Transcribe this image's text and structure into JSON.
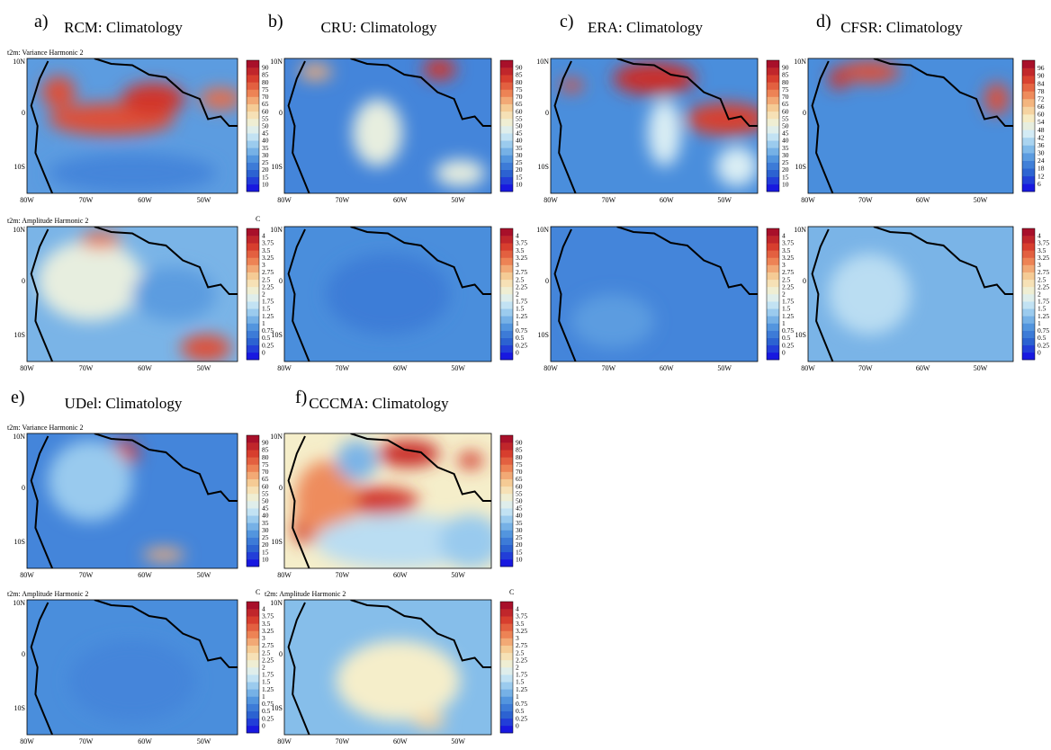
{
  "panels": [
    {
      "label": "a)",
      "title": "RCM: Climatology",
      "maps": [
        {
          "subtitle": "t2m: Variance Harmonic 2",
          "levels": [
            10,
            15,
            20,
            25,
            30,
            35,
            40,
            45,
            50,
            55,
            60,
            65,
            70,
            75,
            80,
            85,
            90
          ]
        },
        {
          "subtitle": "t2m: Amplitude Harmonic 2",
          "unit": "C",
          "levels": [
            0,
            0.25,
            0.5,
            0.75,
            1,
            1.25,
            1.5,
            1.75,
            2,
            2.25,
            2.5,
            2.75,
            3,
            3.25,
            3.5,
            3.75,
            4
          ]
        }
      ]
    },
    {
      "label": "b)",
      "title": "CRU: Climatology",
      "maps": [
        {
          "levels": [
            10,
            15,
            20,
            25,
            30,
            35,
            40,
            45,
            50,
            55,
            60,
            65,
            70,
            75,
            80,
            85,
            90
          ]
        },
        {
          "levels": [
            0,
            0.25,
            0.5,
            0.75,
            1,
            1.25,
            1.5,
            1.75,
            2,
            2.25,
            2.5,
            2.75,
            3,
            3.25,
            3.5,
            3.75,
            4
          ]
        }
      ]
    },
    {
      "label": "c)",
      "title": "ERA: Climatology",
      "maps": [
        {
          "levels": [
            10,
            15,
            20,
            25,
            30,
            35,
            40,
            45,
            50,
            55,
            60,
            65,
            70,
            75,
            80,
            85,
            90
          ]
        },
        {
          "levels": [
            0,
            0.25,
            0.5,
            0.75,
            1,
            1.25,
            1.5,
            1.75,
            2,
            2.25,
            2.5,
            2.75,
            3,
            3.25,
            3.5,
            3.75,
            4
          ]
        }
      ]
    },
    {
      "label": "d)",
      "title": "CFSR: Climatology",
      "maps": [
        {
          "levels": [
            6,
            12,
            18,
            24,
            30,
            36,
            42,
            48,
            54,
            60,
            66,
            72,
            78,
            84,
            90,
            96
          ]
        },
        {
          "levels": [
            0,
            0.25,
            0.5,
            0.75,
            1,
            1.25,
            1.5,
            1.75,
            2,
            2.25,
            2.5,
            2.75,
            3,
            3.25,
            3.5,
            3.75,
            4
          ]
        }
      ]
    },
    {
      "label": "e)",
      "title": "UDel: Climatology",
      "maps": [
        {
          "subtitle": "t2m: Variance Harmonic 2",
          "levels": [
            10,
            15,
            20,
            25,
            30,
            35,
            40,
            45,
            50,
            55,
            60,
            65,
            70,
            75,
            80,
            85,
            90
          ]
        },
        {
          "subtitle": "t2m: Amplitude Harmonic 2",
          "unit": "C",
          "levels": [
            0,
            0.25,
            0.5,
            0.75,
            1,
            1.25,
            1.5,
            1.75,
            2,
            2.25,
            2.5,
            2.75,
            3,
            3.25,
            3.5,
            3.75,
            4
          ]
        }
      ]
    },
    {
      "label": "f)",
      "title": "CCCMA: Climatology",
      "maps": [
        {
          "levels": [
            10,
            15,
            20,
            25,
            30,
            35,
            40,
            45,
            50,
            55,
            60,
            65,
            70,
            75,
            80,
            85,
            90
          ]
        },
        {
          "subtitle": "t2m: Amplitude Harmonic 2",
          "unit": "C",
          "levels": [
            0,
            0.25,
            0.5,
            0.75,
            1,
            1.25,
            1.5,
            1.75,
            2,
            2.25,
            2.5,
            2.75,
            3,
            3.25,
            3.5,
            3.75,
            4
          ]
        }
      ]
    }
  ],
  "lat_labels": [
    "10N",
    "0",
    "10S"
  ],
  "lon_labels": [
    "80W",
    "70W",
    "60W",
    "50W"
  ]
}
